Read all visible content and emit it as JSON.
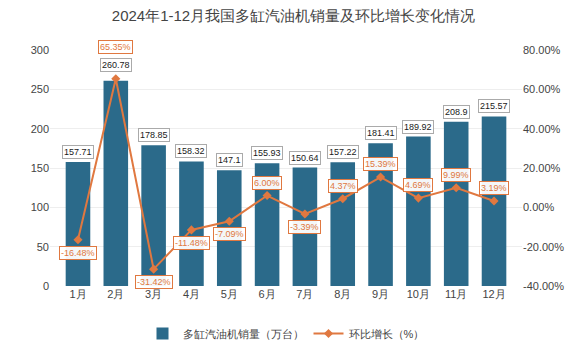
{
  "chart_data": {
    "type": "bar",
    "title": "2024年1-12月我国多缸汽油机销量及环比增长变化情况",
    "categories": [
      "1月",
      "2月",
      "3月",
      "4月",
      "5月",
      "6月",
      "7月",
      "8月",
      "9月",
      "10月",
      "11月",
      "12月"
    ],
    "series": [
      {
        "name": "多缸汽油机销量（万台）",
        "type": "bar",
        "color": "#2B6A8A",
        "values": [
          157.71,
          260.78,
          178.85,
          158.32,
          147.1,
          155.93,
          150.64,
          157.22,
          181.41,
          189.92,
          208.9,
          215.57
        ]
      },
      {
        "name": "环比增长（%）",
        "type": "line",
        "axis": "y2",
        "color": "#E07840",
        "marker": "diamond",
        "values": [
          -16.48,
          65.35,
          -31.42,
          -11.48,
          -7.09,
          6.0,
          -3.39,
          4.37,
          15.39,
          4.69,
          9.99,
          3.19
        ],
        "value_labels": [
          "-16.48%",
          "65.35%",
          "-31.42%",
          "-11.48%",
          "-7.09%",
          "6.00%",
          "-3.39%",
          "4.37%",
          "15.39%",
          "4.69%",
          "9.99%",
          "3.19%"
        ]
      }
    ],
    "ylim": [
      0,
      300
    ],
    "yticks": [
      0,
      50,
      100,
      150,
      200,
      250,
      300
    ],
    "y2lim": [
      -40,
      80
    ],
    "y2ticks": [
      {
        "value": -40,
        "label": "-40.00%"
      },
      {
        "value": -20,
        "label": "-20.00%"
      },
      {
        "value": 0,
        "label": "0.00%"
      },
      {
        "value": 20,
        "label": "20.00%"
      },
      {
        "value": 40,
        "label": "40.00%"
      },
      {
        "value": 60,
        "label": "60.00%"
      },
      {
        "value": 80,
        "label": "80.00%"
      }
    ],
    "grid": true,
    "legend": "bottom",
    "data_labels": true
  }
}
